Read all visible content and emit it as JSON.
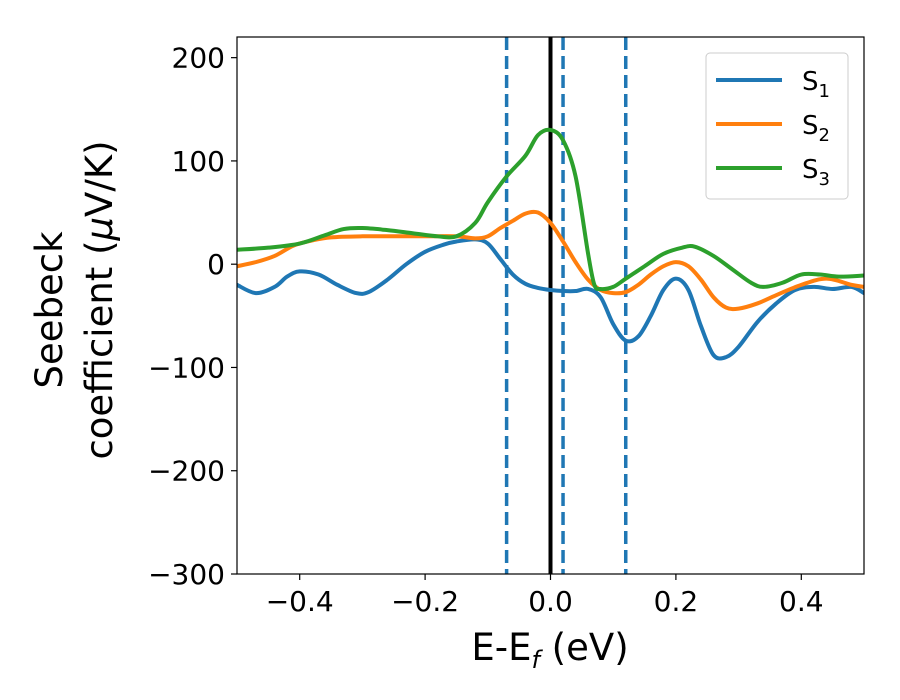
{
  "chart_data": {
    "type": "line",
    "xlabel": "E-E",
    "xlabel_sub": "f",
    "xlabel_unit": " (eV)",
    "ylabel_line1": "Seebeck",
    "ylabel_line2": "coefficient  (",
    "ylabel_mu": "μ",
    "ylabel_unit": "V/K)",
    "xlim": [
      -0.5,
      0.5
    ],
    "ylim": [
      -300,
      220
    ],
    "x_ticks": [
      -0.4,
      -0.2,
      0.0,
      0.2,
      0.4
    ],
    "x_tick_labels": [
      "−0.4",
      "−0.2",
      "0.0",
      "0.2",
      "0.4"
    ],
    "y_ticks": [
      -300,
      -200,
      -100,
      0,
      100,
      200
    ],
    "y_tick_labels": [
      "−300",
      "−200",
      "−100",
      "0",
      "100",
      "200"
    ],
    "grid": false,
    "legend_position": "top-right",
    "vertical_lines": [
      {
        "x": -0.07,
        "style": "dashed",
        "color": "#1f77b4"
      },
      {
        "x": 0.0,
        "style": "solid",
        "color": "#000000"
      },
      {
        "x": 0.02,
        "style": "dashed",
        "color": "#1f77b4"
      },
      {
        "x": 0.12,
        "style": "dashed",
        "color": "#1f77b4"
      }
    ],
    "series": [
      {
        "name": "S",
        "sub": "1",
        "color": "#1f77b4",
        "points": [
          [
            -0.5,
            -20
          ],
          [
            -0.47,
            -28
          ],
          [
            -0.44,
            -22
          ],
          [
            -0.42,
            -12
          ],
          [
            -0.4,
            -7
          ],
          [
            -0.37,
            -10
          ],
          [
            -0.34,
            -20
          ],
          [
            -0.31,
            -28
          ],
          [
            -0.29,
            -27
          ],
          [
            -0.26,
            -15
          ],
          [
            -0.23,
            0
          ],
          [
            -0.2,
            12
          ],
          [
            -0.17,
            19
          ],
          [
            -0.15,
            22
          ],
          [
            -0.12,
            24
          ],
          [
            -0.1,
            20
          ],
          [
            -0.08,
            5
          ],
          [
            -0.06,
            -10
          ],
          [
            -0.04,
            -19
          ],
          [
            -0.02,
            -23
          ],
          [
            0.0,
            -25
          ],
          [
            0.02,
            -26
          ],
          [
            0.04,
            -26
          ],
          [
            0.06,
            -24
          ],
          [
            0.08,
            -32
          ],
          [
            0.1,
            -58
          ],
          [
            0.12,
            -74
          ],
          [
            0.14,
            -70
          ],
          [
            0.16,
            -50
          ],
          [
            0.18,
            -25
          ],
          [
            0.2,
            -14
          ],
          [
            0.22,
            -25
          ],
          [
            0.24,
            -60
          ],
          [
            0.26,
            -88
          ],
          [
            0.28,
            -90
          ],
          [
            0.3,
            -80
          ],
          [
            0.33,
            -56
          ],
          [
            0.36,
            -38
          ],
          [
            0.39,
            -25
          ],
          [
            0.42,
            -22
          ],
          [
            0.45,
            -24
          ],
          [
            0.48,
            -22
          ],
          [
            0.5,
            -28
          ]
        ]
      },
      {
        "name": "S",
        "sub": "2",
        "color": "#ff7f0e",
        "points": [
          [
            -0.5,
            -2
          ],
          [
            -0.47,
            2
          ],
          [
            -0.44,
            8
          ],
          [
            -0.41,
            18
          ],
          [
            -0.38,
            23
          ],
          [
            -0.35,
            26
          ],
          [
            -0.3,
            27
          ],
          [
            -0.25,
            27
          ],
          [
            -0.2,
            27
          ],
          [
            -0.15,
            27
          ],
          [
            -0.12,
            25
          ],
          [
            -0.1,
            27
          ],
          [
            -0.08,
            35
          ],
          [
            -0.06,
            42
          ],
          [
            -0.04,
            49
          ],
          [
            -0.02,
            50
          ],
          [
            0.0,
            40
          ],
          [
            0.02,
            22
          ],
          [
            0.04,
            2
          ],
          [
            0.06,
            -15
          ],
          [
            0.08,
            -25
          ],
          [
            0.1,
            -28
          ],
          [
            0.12,
            -27
          ],
          [
            0.14,
            -20
          ],
          [
            0.16,
            -10
          ],
          [
            0.18,
            -2
          ],
          [
            0.2,
            2
          ],
          [
            0.22,
            -2
          ],
          [
            0.24,
            -15
          ],
          [
            0.26,
            -32
          ],
          [
            0.28,
            -42
          ],
          [
            0.3,
            -43
          ],
          [
            0.33,
            -38
          ],
          [
            0.36,
            -30
          ],
          [
            0.4,
            -20
          ],
          [
            0.44,
            -14
          ],
          [
            0.48,
            -20
          ],
          [
            0.5,
            -22
          ]
        ]
      },
      {
        "name": "S",
        "sub": "3",
        "color": "#2ca02c",
        "points": [
          [
            -0.5,
            14
          ],
          [
            -0.45,
            16
          ],
          [
            -0.4,
            20
          ],
          [
            -0.36,
            28
          ],
          [
            -0.33,
            34
          ],
          [
            -0.3,
            35
          ],
          [
            -0.26,
            33
          ],
          [
            -0.22,
            30
          ],
          [
            -0.18,
            27
          ],
          [
            -0.15,
            27
          ],
          [
            -0.12,
            40
          ],
          [
            -0.1,
            60
          ],
          [
            -0.07,
            85
          ],
          [
            -0.04,
            105
          ],
          [
            -0.02,
            125
          ],
          [
            0.0,
            130
          ],
          [
            0.02,
            120
          ],
          [
            0.04,
            85
          ],
          [
            0.06,
            10
          ],
          [
            0.07,
            -20
          ],
          [
            0.08,
            -24
          ],
          [
            0.1,
            -22
          ],
          [
            0.12,
            -14
          ],
          [
            0.15,
            -2
          ],
          [
            0.18,
            10
          ],
          [
            0.21,
            16
          ],
          [
            0.23,
            17
          ],
          [
            0.26,
            8
          ],
          [
            0.29,
            -5
          ],
          [
            0.32,
            -18
          ],
          [
            0.34,
            -22
          ],
          [
            0.37,
            -18
          ],
          [
            0.4,
            -10
          ],
          [
            0.43,
            -10
          ],
          [
            0.46,
            -12
          ],
          [
            0.5,
            -11
          ]
        ]
      }
    ]
  }
}
